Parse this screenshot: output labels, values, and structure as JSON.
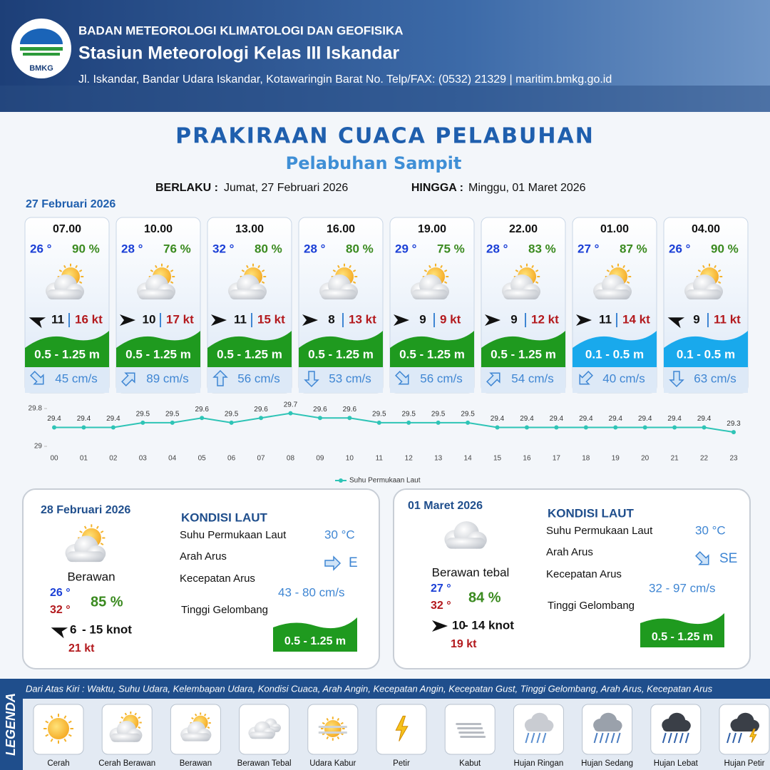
{
  "header": {
    "logo_text": "BMKG",
    "organization": "BADAN METEOROLOGI KLIMATOLOGI DAN GEOFISIKA",
    "station": "Stasiun Meteorologi Kelas III Iskandar",
    "address": "Jl. Iskandar, Bandar Udara Iskandar, Kotawaringin Barat No. Telp/FAX: (0532) 21329 | maritim.bmkg.go.id"
  },
  "title": "PRAKIRAAN CUACA PELABUHAN",
  "subtitle": "Pelabuhan Sampit",
  "validity": {
    "from_label": "BERLAKU :",
    "from": "Jumat, 27 Februari 2026",
    "to_label": "HINGGA :",
    "to": "Minggu, 01 Maret 2026"
  },
  "today": {
    "date": "27 Februari 2026",
    "slots": [
      {
        "time": "07.00",
        "temperature": "26 °",
        "humidity": "90 %",
        "wind": "11",
        "gust": "16 kt",
        "wave": "0.5 - 1.25 m",
        "wave_color": "#1f9a1f",
        "current": "45 cm/s"
      },
      {
        "time": "10.00",
        "temperature": "28 °",
        "humidity": "76 %",
        "wind": "10",
        "gust": "17 kt",
        "wave": "0.5 - 1.25 m",
        "wave_color": "#1f9a1f",
        "current": "89 cm/s"
      },
      {
        "time": "13.00",
        "temperature": "32 °",
        "humidity": "80 %",
        "wind": "11",
        "gust": "15 kt",
        "wave": "0.5 - 1.25 m",
        "wave_color": "#1f9a1f",
        "current": "56 cm/s"
      },
      {
        "time": "16.00",
        "temperature": "28 °",
        "humidity": "80 %",
        "wind": "8",
        "gust": "13 kt",
        "wave": "0.5 - 1.25 m",
        "wave_color": "#1f9a1f",
        "current": "53 cm/s"
      },
      {
        "time": "19.00",
        "temperature": "29 °",
        "humidity": "75 %",
        "wind": "9",
        "gust": "9 kt",
        "wave": "0.5 - 1.25 m",
        "wave_color": "#1f9a1f",
        "current": "56 cm/s"
      },
      {
        "time": "22.00",
        "temperature": "28 °",
        "humidity": "83 %",
        "wind": "9",
        "gust": "12 kt",
        "wave": "0.5 - 1.25 m",
        "wave_color": "#1f9a1f",
        "current": "54 cm/s"
      },
      {
        "time": "01.00",
        "temperature": "27 °",
        "humidity": "87 %",
        "wind": "11",
        "gust": "14 kt",
        "wave": "0.1 - 0.5 m",
        "wave_color": "#19a9ec",
        "current": "40 cm/s"
      },
      {
        "time": "04.00",
        "temperature": "26 °",
        "humidity": "90 %",
        "wind": "9",
        "gust": "11 kt",
        "wave": "0.1 - 0.5 m",
        "wave_color": "#19a9ec",
        "current": "63 cm/s"
      }
    ]
  },
  "chart_data": {
    "type": "line",
    "categories": [
      "00",
      "01",
      "02",
      "03",
      "04",
      "05",
      "06",
      "07",
      "08",
      "09",
      "10",
      "11",
      "12",
      "13",
      "14",
      "15",
      "16",
      "17",
      "18",
      "19",
      "20",
      "21",
      "22",
      "23"
    ],
    "series": [
      {
        "name": "Suhu Permukaan Laut",
        "color": "#2ec4b6",
        "values": [
          29.4,
          29.4,
          29.4,
          29.5,
          29.5,
          29.6,
          29.5,
          29.6,
          29.7,
          29.6,
          29.6,
          29.5,
          29.5,
          29.5,
          29.5,
          29.4,
          29.4,
          29.4,
          29.4,
          29.4,
          29.4,
          29.4,
          29.4,
          29.3
        ]
      }
    ],
    "ylim": [
      29,
      29.8
    ],
    "yticks": [
      29,
      29.8
    ]
  },
  "daily": [
    {
      "date": "28 Februari 2026",
      "condition": "Berawan",
      "temp_min": "26 °",
      "temp_max": "32 °",
      "humidity": "85 %",
      "wind": "6",
      "wind_max": "- 15 knot",
      "gust": "21 kt",
      "sea": {
        "heading": "KONDISI LAUT",
        "sst_label": "Suhu Permukaan Laut",
        "sst": "30 °C",
        "current_dir_label": "Arah Arus",
        "current_dir": "E",
        "current_speed_label": "Kecepatan Arus",
        "current_speed": "43  - 80 cm/s",
        "wave_label": "Tinggi Gelombang",
        "wave": "0.5 - 1.25 m"
      }
    },
    {
      "date": "01 Maret 2026",
      "condition": "Berawan tebal",
      "temp_min": "27 °",
      "temp_max": "32 °",
      "humidity": "84 %",
      "wind": "10",
      "wind_max": "- 14 knot",
      "gust": "19 kt",
      "sea": {
        "heading": "KONDISI LAUT",
        "sst_label": "Suhu Permukaan Laut",
        "sst": "30 °C",
        "current_dir_label": "Arah Arus",
        "current_dir": "SE",
        "current_speed_label": "Kecepatan Arus",
        "current_speed": "32 - 97 cm/s",
        "wave_label": "Tinggi Gelombang",
        "wave": "0.5 - 1.25 m"
      }
    }
  ],
  "legend": {
    "title": "LEGENDA",
    "description": "Dari Atas Kiri : Waktu, Suhu Udara, Kelembapan Udara, Kondisi Cuaca, Arah Angin, Kecepatan Angin, Kecepatan Gust, Tinggi Gelombang, Arah Arus, Kecepatan Arus",
    "items": [
      "Cerah",
      "Cerah Berawan",
      "Berawan",
      "Berawan Tebal",
      "Udara Kabur",
      "Petir",
      "Kabut",
      "Hujan Ringan",
      "Hujan Sedang",
      "Hujan Lebat",
      "Hujan Petir"
    ]
  }
}
